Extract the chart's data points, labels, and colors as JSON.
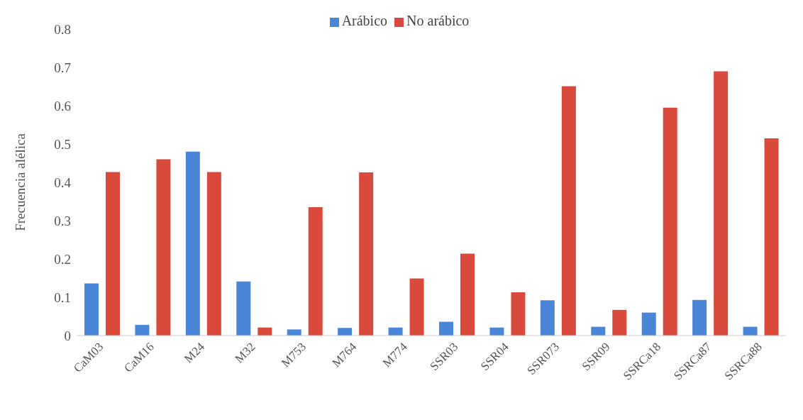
{
  "chart_data": {
    "type": "bar",
    "ylabel": "Frecuencia alélica",
    "categories": [
      "CaM03",
      "CaM16",
      "M24",
      "M32",
      "M753",
      "M764",
      "M774",
      "SSR03",
      "SSR04",
      "SSR073",
      "SSR09",
      "SSRCa18",
      "SSRCa87",
      "SSRCa88"
    ],
    "series": [
      {
        "name": "Arábico",
        "color": "#4a86d8",
        "values": [
          0.136,
          0.028,
          0.48,
          0.141,
          0.016,
          0.02,
          0.021,
          0.036,
          0.021,
          0.092,
          0.023,
          0.06,
          0.093,
          0.023
        ]
      },
      {
        "name": "No arábico",
        "color": "#d94a3c",
        "values": [
          0.427,
          0.46,
          0.427,
          0.021,
          0.335,
          0.426,
          0.149,
          0.214,
          0.113,
          0.651,
          0.067,
          0.595,
          0.69,
          0.515
        ]
      }
    ],
    "ylim": [
      0,
      0.8
    ],
    "yticks": [
      0,
      0.1,
      0.2,
      0.3,
      0.4,
      0.5,
      0.6,
      0.7,
      0.8
    ],
    "grid": false,
    "legend": "top"
  }
}
